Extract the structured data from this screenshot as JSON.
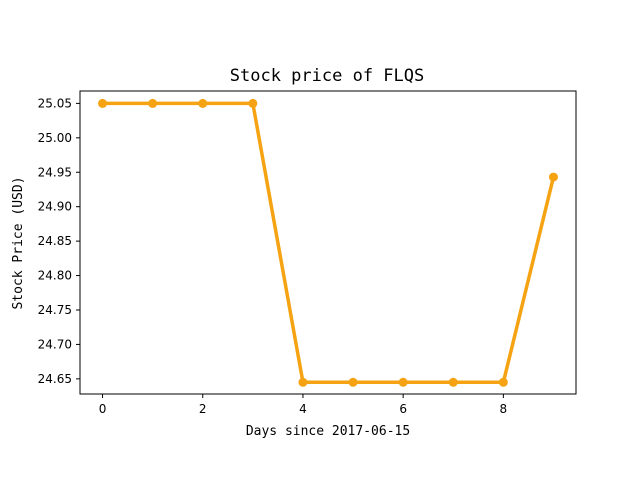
{
  "chart_data": {
    "type": "line",
    "title": "Stock price of FLQS",
    "xlabel": "Days since 2017-06-15",
    "ylabel": "Stock Price (USD)",
    "xlim": [
      -0.45,
      9.45
    ],
    "ylim": [
      24.628,
      25.068
    ],
    "x_ticks": [
      0,
      2,
      4,
      6,
      8
    ],
    "y_ticks": [
      24.65,
      24.7,
      24.75,
      24.8,
      24.85,
      24.9,
      24.95,
      25.0,
      25.05
    ],
    "grid": false,
    "legend": "none",
    "series": [
      {
        "color": "#f5a312",
        "marker": "circle",
        "x": [
          0,
          1,
          2,
          3,
          4,
          5,
          6,
          7,
          8,
          9
        ],
        "y": [
          25.05,
          25.05,
          25.05,
          25.05,
          24.645,
          24.645,
          24.645,
          24.645,
          24.645,
          24.943
        ]
      }
    ]
  }
}
